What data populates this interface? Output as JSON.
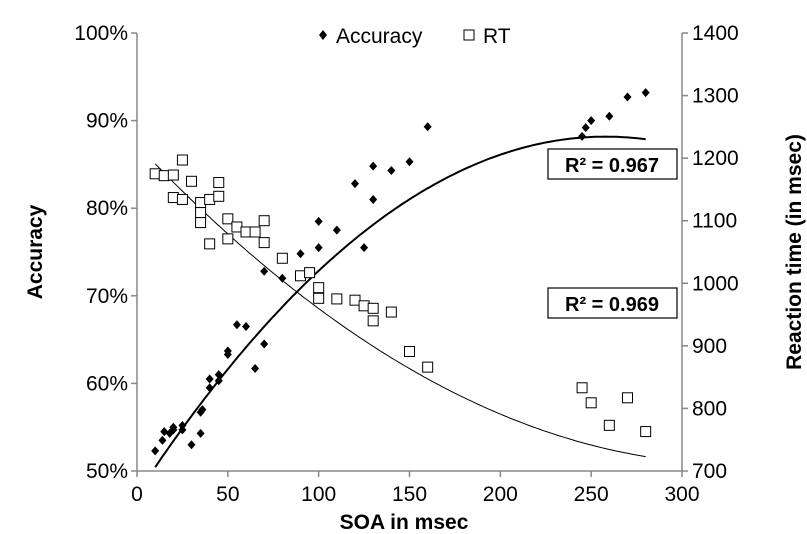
{
  "chart_data": {
    "type": "scatter",
    "xlabel": "SOA in msec",
    "ylabel": "Accuracy",
    "y2label": "Reaction time (in msec)",
    "xlim": [
      0,
      300
    ],
    "ylim": [
      0.5,
      1.0
    ],
    "y2lim": [
      700,
      1400
    ],
    "x_ticks": [
      "0",
      "50",
      "100",
      "150",
      "200",
      "250",
      "300"
    ],
    "y_ticks": [
      "50%",
      "60%",
      "70%",
      "80%",
      "90%",
      "100%"
    ],
    "y2_ticks": [
      "700",
      "800",
      "900",
      "1000",
      "1100",
      "1200",
      "1300",
      "1400"
    ],
    "legend_position": "top-center",
    "grid": false,
    "series": [
      {
        "name": "Accuracy",
        "axis": "left",
        "marker": "diamond-filled",
        "color": "#000000",
        "x": [
          10,
          14,
          15,
          18,
          20,
          20,
          25,
          25,
          30,
          35,
          35,
          36,
          40,
          40,
          45,
          45,
          50,
          50,
          55,
          60,
          65,
          70,
          70,
          80,
          90,
          100,
          100,
          110,
          120,
          125,
          130,
          130,
          140,
          150,
          160,
          245,
          247,
          250,
          260,
          270,
          280
        ],
        "y": [
          0.523,
          0.535,
          0.545,
          0.543,
          0.55,
          0.547,
          0.547,
          0.552,
          0.53,
          0.543,
          0.567,
          0.57,
          0.595,
          0.605,
          0.603,
          0.61,
          0.633,
          0.637,
          0.667,
          0.665,
          0.617,
          0.645,
          0.728,
          0.72,
          0.748,
          0.755,
          0.785,
          0.775,
          0.828,
          0.755,
          0.81,
          0.848,
          0.843,
          0.853,
          0.893,
          0.882,
          0.892,
          0.9,
          0.905,
          0.927,
          0.932
        ]
      },
      {
        "name": "RT",
        "axis": "right",
        "marker": "square-open",
        "color": "#000000",
        "x": [
          10,
          15,
          20,
          20,
          25,
          25,
          30,
          35,
          35,
          35,
          40,
          40,
          45,
          45,
          50,
          50,
          55,
          60,
          65,
          70,
          70,
          80,
          90,
          95,
          100,
          100,
          110,
          120,
          125,
          130,
          130,
          140,
          150,
          160,
          245,
          250,
          260,
          270,
          280
        ],
        "y": [
          1175,
          1172,
          1173,
          1137,
          1197,
          1134,
          1163,
          1129,
          1113,
          1097,
          1134,
          1063,
          1139,
          1161,
          1103,
          1071,
          1090,
          1082,
          1082,
          1065,
          1100,
          1040,
          1012,
          1017,
          993,
          976,
          975,
          973,
          964,
          960,
          940,
          954,
          891,
          866,
          833,
          809,
          773,
          817,
          763
        ]
      }
    ],
    "trendlines": [
      {
        "series": "Accuracy",
        "kind": "polynomial-2",
        "r2_label": "R² = 0.967",
        "coefficients": [
          0.4733,
          0.003166,
          -6.136e-06
        ],
        "stroke": "thick"
      },
      {
        "series": "RT",
        "kind": "polynomial-2",
        "r2_label": "R² = 0.969",
        "coefficients": [
          1221.4,
          -3.0833,
          0.004655
        ],
        "stroke": "thin"
      }
    ]
  }
}
